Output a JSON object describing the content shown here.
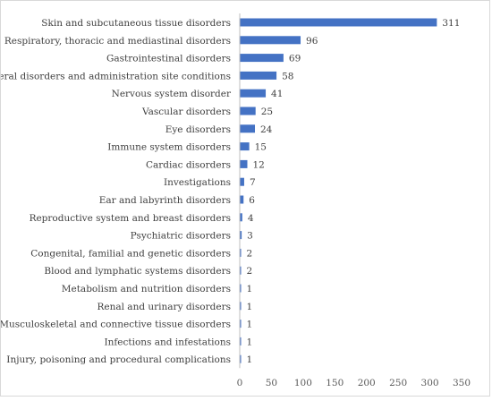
{
  "chart_data": {
    "type": "bar",
    "orientation": "horizontal",
    "categories": [
      "Skin and subcutaneous tissue disorders",
      "Respiratory, thoracic and mediastinal disorders",
      "Gastrointestinal disorders",
      "General disorders and administration site conditions",
      "Nervous system disorder",
      "Vascular disorders",
      "Eye disorders",
      "Immune system disorders",
      "Cardiac disorders",
      "Investigations",
      "Ear and labyrinth disorders",
      "Reproductive system and breast disorders",
      "Psychiatric disorders",
      "Congenital, familial and genetic disorders",
      "Blood and lymphatic systems disorders",
      "Metabolism and nutrition disorders",
      "Renal and urinary disorders",
      "Musculoskeletal and connective tissue disorders",
      "Infections and infestations",
      "Injury, poisoning and procedural complications"
    ],
    "values": [
      311,
      96,
      69,
      58,
      41,
      25,
      24,
      15,
      12,
      7,
      6,
      4,
      3,
      2,
      2,
      1,
      1,
      1,
      1,
      1
    ],
    "x_ticks": [
      "0",
      "50",
      "100",
      "150",
      "200",
      "250",
      "300",
      "350"
    ],
    "xlim": [
      0,
      350
    ],
    "title": "",
    "xlabel": "",
    "ylabel": "",
    "grid": false,
    "legend": "none",
    "bar_color": "#4472c4"
  }
}
